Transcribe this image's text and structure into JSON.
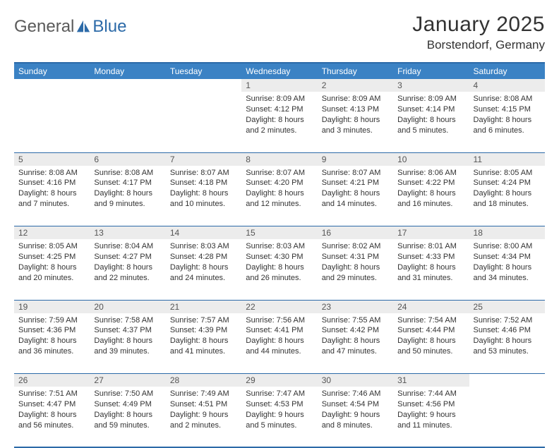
{
  "logo": {
    "text1": "General",
    "text2": "Blue"
  },
  "title": "January 2025",
  "location": "Borstendorf, Germany",
  "weekdays": [
    "Sunday",
    "Monday",
    "Tuesday",
    "Wednesday",
    "Thursday",
    "Friday",
    "Saturday"
  ],
  "colors": {
    "header_bg": "#3b82c4",
    "header_border": "#2c6aa8",
    "daynum_bg": "#ececec",
    "text": "#333333",
    "logo_gray": "#5a5a5a",
    "logo_blue": "#2c6aa8"
  },
  "weeks": [
    [
      null,
      null,
      null,
      {
        "n": "1",
        "sr": "Sunrise: 8:09 AM",
        "ss": "Sunset: 4:12 PM",
        "d1": "Daylight: 8 hours",
        "d2": "and 2 minutes."
      },
      {
        "n": "2",
        "sr": "Sunrise: 8:09 AM",
        "ss": "Sunset: 4:13 PM",
        "d1": "Daylight: 8 hours",
        "d2": "and 3 minutes."
      },
      {
        "n": "3",
        "sr": "Sunrise: 8:09 AM",
        "ss": "Sunset: 4:14 PM",
        "d1": "Daylight: 8 hours",
        "d2": "and 5 minutes."
      },
      {
        "n": "4",
        "sr": "Sunrise: 8:08 AM",
        "ss": "Sunset: 4:15 PM",
        "d1": "Daylight: 8 hours",
        "d2": "and 6 minutes."
      }
    ],
    [
      {
        "n": "5",
        "sr": "Sunrise: 8:08 AM",
        "ss": "Sunset: 4:16 PM",
        "d1": "Daylight: 8 hours",
        "d2": "and 7 minutes."
      },
      {
        "n": "6",
        "sr": "Sunrise: 8:08 AM",
        "ss": "Sunset: 4:17 PM",
        "d1": "Daylight: 8 hours",
        "d2": "and 9 minutes."
      },
      {
        "n": "7",
        "sr": "Sunrise: 8:07 AM",
        "ss": "Sunset: 4:18 PM",
        "d1": "Daylight: 8 hours",
        "d2": "and 10 minutes."
      },
      {
        "n": "8",
        "sr": "Sunrise: 8:07 AM",
        "ss": "Sunset: 4:20 PM",
        "d1": "Daylight: 8 hours",
        "d2": "and 12 minutes."
      },
      {
        "n": "9",
        "sr": "Sunrise: 8:07 AM",
        "ss": "Sunset: 4:21 PM",
        "d1": "Daylight: 8 hours",
        "d2": "and 14 minutes."
      },
      {
        "n": "10",
        "sr": "Sunrise: 8:06 AM",
        "ss": "Sunset: 4:22 PM",
        "d1": "Daylight: 8 hours",
        "d2": "and 16 minutes."
      },
      {
        "n": "11",
        "sr": "Sunrise: 8:05 AM",
        "ss": "Sunset: 4:24 PM",
        "d1": "Daylight: 8 hours",
        "d2": "and 18 minutes."
      }
    ],
    [
      {
        "n": "12",
        "sr": "Sunrise: 8:05 AM",
        "ss": "Sunset: 4:25 PM",
        "d1": "Daylight: 8 hours",
        "d2": "and 20 minutes."
      },
      {
        "n": "13",
        "sr": "Sunrise: 8:04 AM",
        "ss": "Sunset: 4:27 PM",
        "d1": "Daylight: 8 hours",
        "d2": "and 22 minutes."
      },
      {
        "n": "14",
        "sr": "Sunrise: 8:03 AM",
        "ss": "Sunset: 4:28 PM",
        "d1": "Daylight: 8 hours",
        "d2": "and 24 minutes."
      },
      {
        "n": "15",
        "sr": "Sunrise: 8:03 AM",
        "ss": "Sunset: 4:30 PM",
        "d1": "Daylight: 8 hours",
        "d2": "and 26 minutes."
      },
      {
        "n": "16",
        "sr": "Sunrise: 8:02 AM",
        "ss": "Sunset: 4:31 PM",
        "d1": "Daylight: 8 hours",
        "d2": "and 29 minutes."
      },
      {
        "n": "17",
        "sr": "Sunrise: 8:01 AM",
        "ss": "Sunset: 4:33 PM",
        "d1": "Daylight: 8 hours",
        "d2": "and 31 minutes."
      },
      {
        "n": "18",
        "sr": "Sunrise: 8:00 AM",
        "ss": "Sunset: 4:34 PM",
        "d1": "Daylight: 8 hours",
        "d2": "and 34 minutes."
      }
    ],
    [
      {
        "n": "19",
        "sr": "Sunrise: 7:59 AM",
        "ss": "Sunset: 4:36 PM",
        "d1": "Daylight: 8 hours",
        "d2": "and 36 minutes."
      },
      {
        "n": "20",
        "sr": "Sunrise: 7:58 AM",
        "ss": "Sunset: 4:37 PM",
        "d1": "Daylight: 8 hours",
        "d2": "and 39 minutes."
      },
      {
        "n": "21",
        "sr": "Sunrise: 7:57 AM",
        "ss": "Sunset: 4:39 PM",
        "d1": "Daylight: 8 hours",
        "d2": "and 41 minutes."
      },
      {
        "n": "22",
        "sr": "Sunrise: 7:56 AM",
        "ss": "Sunset: 4:41 PM",
        "d1": "Daylight: 8 hours",
        "d2": "and 44 minutes."
      },
      {
        "n": "23",
        "sr": "Sunrise: 7:55 AM",
        "ss": "Sunset: 4:42 PM",
        "d1": "Daylight: 8 hours",
        "d2": "and 47 minutes."
      },
      {
        "n": "24",
        "sr": "Sunrise: 7:54 AM",
        "ss": "Sunset: 4:44 PM",
        "d1": "Daylight: 8 hours",
        "d2": "and 50 minutes."
      },
      {
        "n": "25",
        "sr": "Sunrise: 7:52 AM",
        "ss": "Sunset: 4:46 PM",
        "d1": "Daylight: 8 hours",
        "d2": "and 53 minutes."
      }
    ],
    [
      {
        "n": "26",
        "sr": "Sunrise: 7:51 AM",
        "ss": "Sunset: 4:47 PM",
        "d1": "Daylight: 8 hours",
        "d2": "and 56 minutes."
      },
      {
        "n": "27",
        "sr": "Sunrise: 7:50 AM",
        "ss": "Sunset: 4:49 PM",
        "d1": "Daylight: 8 hours",
        "d2": "and 59 minutes."
      },
      {
        "n": "28",
        "sr": "Sunrise: 7:49 AM",
        "ss": "Sunset: 4:51 PM",
        "d1": "Daylight: 9 hours",
        "d2": "and 2 minutes."
      },
      {
        "n": "29",
        "sr": "Sunrise: 7:47 AM",
        "ss": "Sunset: 4:53 PM",
        "d1": "Daylight: 9 hours",
        "d2": "and 5 minutes."
      },
      {
        "n": "30",
        "sr": "Sunrise: 7:46 AM",
        "ss": "Sunset: 4:54 PM",
        "d1": "Daylight: 9 hours",
        "d2": "and 8 minutes."
      },
      {
        "n": "31",
        "sr": "Sunrise: 7:44 AM",
        "ss": "Sunset: 4:56 PM",
        "d1": "Daylight: 9 hours",
        "d2": "and 11 minutes."
      },
      null
    ]
  ]
}
